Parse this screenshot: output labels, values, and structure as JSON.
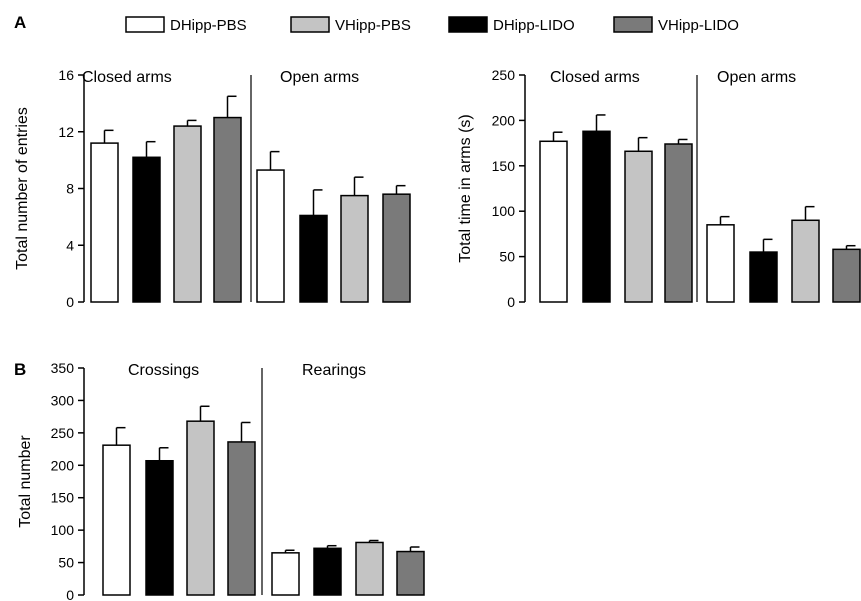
{
  "panel_labels": [
    "A",
    "B"
  ],
  "legend": [
    {
      "name": "DHipp-PBS",
      "color": "#ffffff"
    },
    {
      "name": "VHipp-PBS",
      "color": "#c4c4c4"
    },
    {
      "name": "DHipp-LIDO",
      "color": "#000000"
    },
    {
      "name": "VHipp-LIDO",
      "color": "#7a7a7a"
    }
  ],
  "chart_data": [
    {
      "type": "bar",
      "panel": "A",
      "ylabel": "Total number of entries",
      "ylim": [
        0,
        16
      ],
      "yticks": [
        0,
        4,
        8,
        12,
        16
      ],
      "sections": [
        {
          "label": "Closed arms",
          "bars": [
            {
              "group": "DHipp-PBS",
              "value": 11.2,
              "error": 0.9
            },
            {
              "group": "DHipp-LIDO",
              "value": 10.2,
              "error": 1.1
            },
            {
              "group": "VHipp-PBS",
              "value": 12.4,
              "error": 0.4
            },
            {
              "group": "VHipp-LIDO",
              "value": 13.0,
              "error": 1.5
            }
          ]
        },
        {
          "label": "Open arms",
          "bars": [
            {
              "group": "DHipp-PBS",
              "value": 9.3,
              "error": 1.3
            },
            {
              "group": "DHipp-LIDO",
              "value": 6.1,
              "error": 1.8
            },
            {
              "group": "VHipp-PBS",
              "value": 7.5,
              "error": 1.3
            },
            {
              "group": "VHipp-LIDO",
              "value": 7.6,
              "error": 0.6
            }
          ]
        }
      ]
    },
    {
      "type": "bar",
      "panel": "A",
      "ylabel": "Total time in arms (s)",
      "ylim": [
        0,
        250
      ],
      "yticks": [
        0,
        50,
        100,
        150,
        200,
        250
      ],
      "sections": [
        {
          "label": "Closed arms",
          "bars": [
            {
              "group": "DHipp-PBS",
              "value": 177,
              "error": 10
            },
            {
              "group": "DHipp-LIDO",
              "value": 188,
              "error": 18
            },
            {
              "group": "VHipp-PBS",
              "value": 166,
              "error": 15
            },
            {
              "group": "VHipp-LIDO",
              "value": 174,
              "error": 5
            }
          ]
        },
        {
          "label": "Open arms",
          "bars": [
            {
              "group": "DHipp-PBS",
              "value": 85,
              "error": 9
            },
            {
              "group": "DHipp-LIDO",
              "value": 55,
              "error": 14
            },
            {
              "group": "VHipp-PBS",
              "value": 90,
              "error": 15
            },
            {
              "group": "VHipp-LIDO",
              "value": 58,
              "error": 4
            }
          ]
        }
      ]
    },
    {
      "type": "bar",
      "panel": "B",
      "ylabel": "Total number",
      "ylim": [
        0,
        350
      ],
      "yticks": [
        0,
        50,
        100,
        150,
        200,
        250,
        300,
        350
      ],
      "sections": [
        {
          "label": "Crossings",
          "bars": [
            {
              "group": "DHipp-PBS",
              "value": 231,
              "error": 27
            },
            {
              "group": "DHipp-LIDO",
              "value": 207,
              "error": 20
            },
            {
              "group": "VHipp-PBS",
              "value": 268,
              "error": 23
            },
            {
              "group": "VHipp-LIDO",
              "value": 236,
              "error": 30
            }
          ]
        },
        {
          "label": "Rearings",
          "bars": [
            {
              "group": "DHipp-PBS",
              "value": 65,
              "error": 4
            },
            {
              "group": "DHipp-LIDO",
              "value": 72,
              "error": 4
            },
            {
              "group": "VHipp-PBS",
              "value": 81,
              "error": 3
            },
            {
              "group": "VHipp-LIDO",
              "value": 67,
              "error": 7
            }
          ]
        }
      ]
    }
  ]
}
